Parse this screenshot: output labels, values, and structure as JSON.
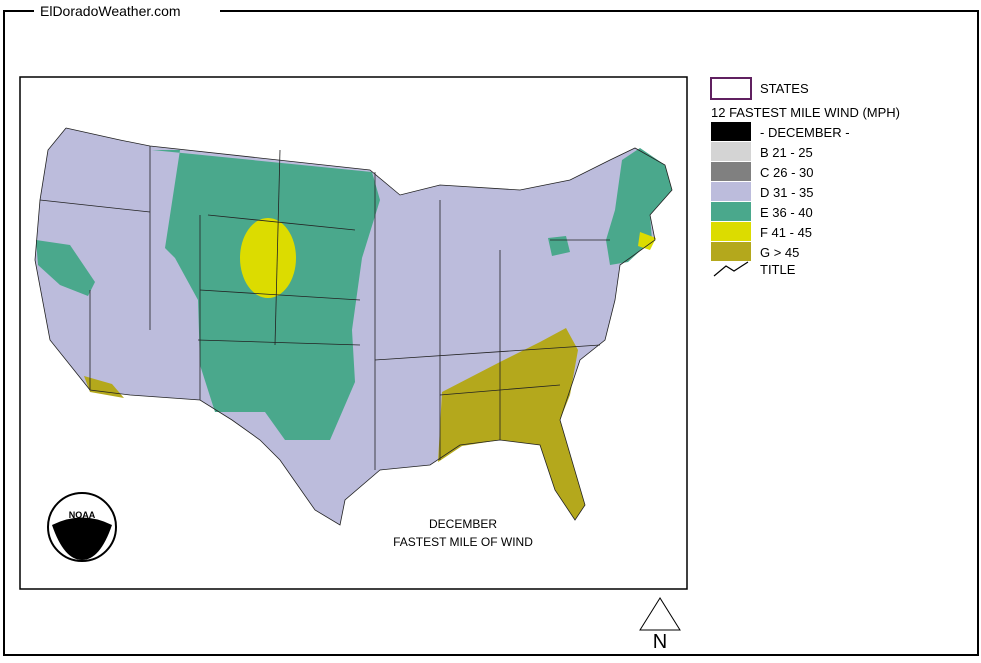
{
  "header": {
    "title": "ElDoradoWeather.com"
  },
  "legend": {
    "states": "STATES",
    "title": "12 FASTEST MILE WIND (MPH)",
    "items": [
      {
        "label": "- DECEMBER -",
        "color": "#000000"
      },
      {
        "label": "B 21 - 25",
        "color": "#d4d4d4"
      },
      {
        "label": "C 26 - 30",
        "color": "#808080"
      },
      {
        "label": "D 31 - 35",
        "color": "#bcbcdc"
      },
      {
        "label": "E 36 - 40",
        "color": "#4aa88c"
      },
      {
        "label": "F 41 - 45",
        "color": "#dcdc00"
      },
      {
        "label": "G > 45",
        "color": "#b4a81c"
      }
    ],
    "title_line": "TITLE"
  },
  "map": {
    "caption": [
      "DECEMBER",
      "FASTEST MILE OF WIND"
    ],
    "logo": "NOAA",
    "north": "N"
  }
}
